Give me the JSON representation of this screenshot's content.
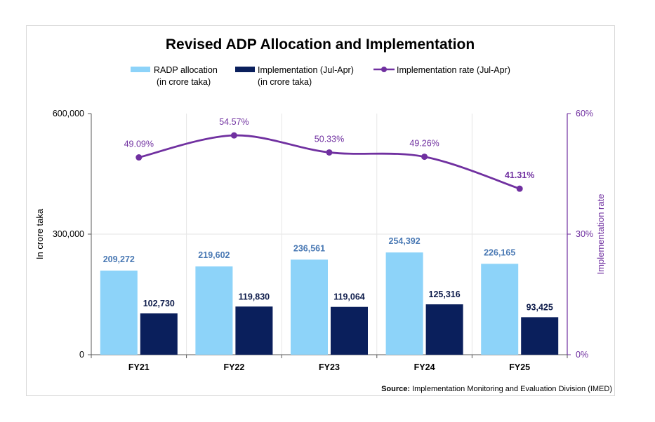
{
  "chart_data": {
    "type": "bar",
    "title": "Revised ADP Allocation and Implementation",
    "categories": [
      "FY21",
      "FY22",
      "FY23",
      "FY24",
      "FY25"
    ],
    "series": [
      {
        "name": "RADP allocation",
        "name_line2": "(in crore taka)",
        "type": "bar",
        "color": "#8dd3f9",
        "values": [
          209272,
          219602,
          236561,
          254392,
          226165
        ],
        "labels": [
          "209,272",
          "219,602",
          "236,561",
          "254,392",
          "226,165"
        ]
      },
      {
        "name": "Implementation (Jul-Apr)",
        "name_line2": "(in crore taka)",
        "type": "bar",
        "color": "#0a1f5c",
        "values": [
          102730,
          119830,
          119064,
          125316,
          93425
        ],
        "labels": [
          "102,730",
          "119,830",
          "119,064",
          "125,316",
          "93,425"
        ]
      },
      {
        "name": "Implementation rate (Jul-Apr)",
        "type": "line",
        "axis": "right",
        "color": "#7030a0",
        "values": [
          49.09,
          54.57,
          50.33,
          49.26,
          41.31
        ],
        "labels": [
          "49.09%",
          "54.57%",
          "50.33%",
          "49.26%",
          "41.31%"
        ]
      }
    ],
    "ylabel": "In crore taka",
    "ylim": [
      0,
      600000
    ],
    "yticks": [
      "0",
      "300,000",
      "600,000"
    ],
    "y2label": "Implementation rate",
    "y2lim": [
      0,
      60
    ],
    "y2ticks": [
      "0%",
      "30%",
      "60%"
    ],
    "legend_position": "top",
    "grid": true,
    "source_label": "Source:",
    "source_text": " Implementation Monitoring and Evaluation Division (IMED)"
  }
}
